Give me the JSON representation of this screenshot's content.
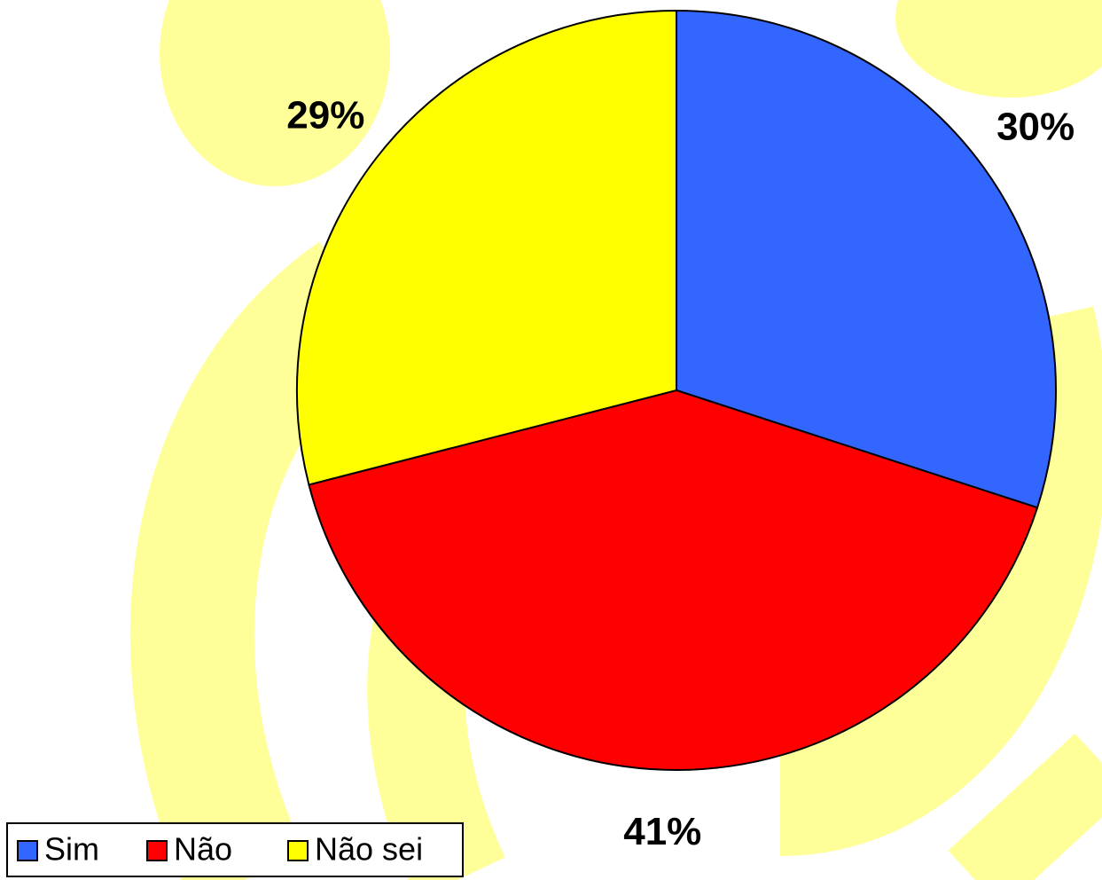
{
  "chart_data": {
    "type": "pie",
    "categories": [
      "Sim",
      "Não",
      "Não sei"
    ],
    "values": [
      30,
      41,
      29
    ],
    "value_labels": [
      "30%",
      "41%",
      "29%"
    ],
    "colors": [
      "#3366ff",
      "#ff0000",
      "#ffff00"
    ],
    "legend": "bottom-left"
  }
}
